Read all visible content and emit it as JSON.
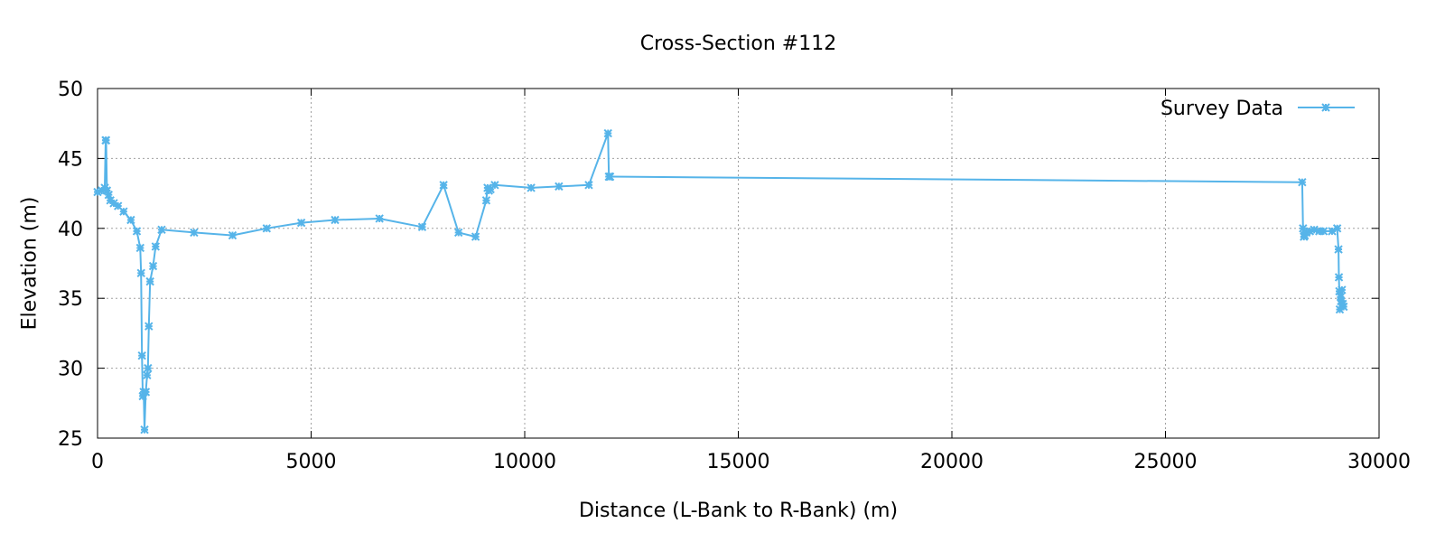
{
  "chart_data": {
    "type": "line",
    "title": "Cross-Section #112",
    "xlabel": "Distance (L-Bank to R-Bank) (m)",
    "ylabel": "Elevation (m)",
    "xlim": [
      0,
      30000
    ],
    "ylim": [
      25,
      50
    ],
    "xticks": [
      "0",
      "5000",
      "10000",
      "15000",
      "20000",
      "25000",
      "30000"
    ],
    "yticks": [
      "25",
      "30",
      "35",
      "40",
      "45",
      "50"
    ],
    "grid": true,
    "legend_position": "top-right",
    "series": [
      {
        "name": "Survey Data",
        "color": "#56b4e9",
        "marker": "star",
        "x": [
          0,
          100,
          170,
          190,
          200,
          220,
          260,
          300,
          380,
          480,
          610,
          780,
          920,
          1000,
          1020,
          1040,
          1060,
          1080,
          1100,
          1130,
          1160,
          1180,
          1200,
          1230,
          1300,
          1360,
          1500,
          2260,
          3160,
          3960,
          4770,
          5560,
          6600,
          7600,
          8100,
          8450,
          8850,
          9100,
          9130,
          9160,
          9200,
          9300,
          10150,
          10800,
          11500,
          11950,
          11970,
          11990,
          12000,
          28200,
          28220,
          28240,
          28260,
          28300,
          28380,
          28480,
          28600,
          28700,
          28900,
          29020,
          29050,
          29060,
          29070,
          29080,
          29100,
          29110,
          29130,
          29150,
          29170
        ],
        "y": [
          42.6,
          42.7,
          42.9,
          46.3,
          46.3,
          42.7,
          42.4,
          42.0,
          41.8,
          41.6,
          41.2,
          40.6,
          39.8,
          38.6,
          36.8,
          30.9,
          28.0,
          28.3,
          25.6,
          28.3,
          29.5,
          30.0,
          33.0,
          36.2,
          37.3,
          38.7,
          39.9,
          39.7,
          39.5,
          40.0,
          40.4,
          40.6,
          40.7,
          40.1,
          43.1,
          39.7,
          39.4,
          42.0,
          42.9,
          42.7,
          42.8,
          43.1,
          42.9,
          43.0,
          43.1,
          46.8,
          43.7,
          43.7,
          43.7,
          43.3,
          40.0,
          39.4,
          39.5,
          39.7,
          39.8,
          39.9,
          39.8,
          39.8,
          39.8,
          40.0,
          38.5,
          36.5,
          35.5,
          34.2,
          35.1,
          34.8,
          35.6,
          34.6,
          34.4
        ]
      }
    ]
  }
}
